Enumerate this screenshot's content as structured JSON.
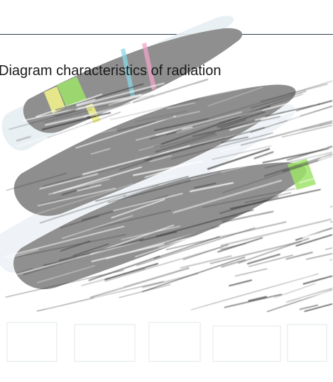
{
  "diagram": {
    "title": "Diagram characteristics of radiation"
  },
  "colors": {
    "rule": "#2f3b4a",
    "lobe_dark": "#8f8f8f",
    "lobe_light": "#e3eaf0",
    "accent_green": "#9fe36a",
    "accent_yellow": "#f0f08a",
    "accent_cyan": "#8ad7e6",
    "accent_pink": "#f2a3c8"
  }
}
